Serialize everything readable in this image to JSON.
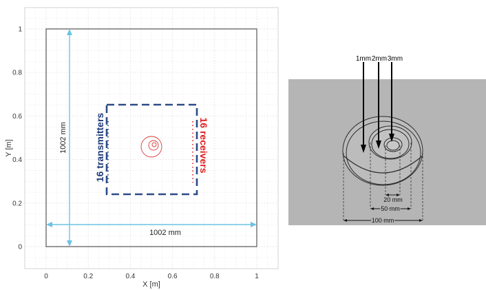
{
  "left_plot": {
    "x_axis_label": "X [m]",
    "y_axis_label": "Y [m]",
    "x_ticks": [
      "0",
      "0.2",
      "0.4",
      "0.6",
      "0.8",
      "1"
    ],
    "y_ticks": [
      "0",
      "0.2",
      "0.4",
      "0.6",
      "0.8",
      "1"
    ],
    "x_range": [
      -0.1,
      1.1
    ],
    "y_range": [
      -0.1,
      1.1
    ],
    "vertical_dimension": "1002 mm",
    "horizontal_dimension": "1002 mm",
    "transmitters_label": "16 transmitters",
    "receivers_label": "16 receivers",
    "colors": {
      "frame": "#555555",
      "grid": "#e6e6e6",
      "dimension_arrow": "#6cc3e4",
      "array_box": "#2b4a86",
      "transmitters_text": "#1f3a7a",
      "receivers_text": "#e02020",
      "target_circles": "#d93a3a"
    }
  },
  "right_diagram": {
    "depth_labels": [
      "1mm",
      "2mm",
      "3mm"
    ],
    "diameter_labels": [
      "20 mm",
      "50 mm",
      "100 mm"
    ],
    "colors": {
      "plate": "#b5b5b5",
      "outline": "#2a2a2a"
    }
  }
}
